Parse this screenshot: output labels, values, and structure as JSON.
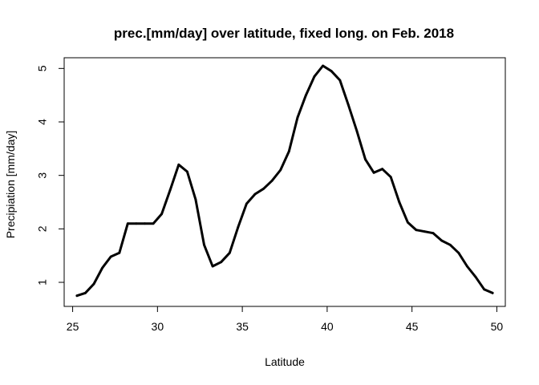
{
  "chart_data": {
    "type": "line",
    "title": "prec.[mm/day] over latitude, fixed long. on Feb. 2018",
    "xlabel": "Latitude",
    "ylabel": "Precipiation [mm/day]",
    "xlim": [
      24.5,
      50.5
    ],
    "ylim": [
      0.55,
      5.2
    ],
    "xticks": [
      25,
      30,
      35,
      40,
      45,
      50
    ],
    "yticks": [
      1,
      2,
      3,
      4,
      5
    ],
    "grid": false,
    "line_color": "#000000",
    "series": [
      {
        "x": [
          25.25,
          25.75,
          26.25,
          26.75,
          27.25,
          27.75,
          28.25,
          28.75,
          29.25,
          29.75,
          30.25,
          30.75,
          31.25,
          31.75,
          32.25,
          32.75,
          33.25,
          33.75,
          34.25,
          34.75,
          35.25,
          35.75,
          36.25,
          36.75,
          37.25,
          37.75,
          38.25,
          38.75,
          39.25,
          39.75,
          40.25,
          40.75,
          41.25,
          41.75,
          42.25,
          42.75,
          43.25,
          43.75,
          44.25,
          44.75,
          45.25,
          45.75,
          46.25,
          46.75,
          47.25,
          47.75,
          48.25,
          48.75,
          49.25,
          49.75
        ],
        "values": [
          0.75,
          0.8,
          0.97,
          1.27,
          1.48,
          1.55,
          2.1,
          2.1,
          2.1,
          2.1,
          2.28,
          2.73,
          3.2,
          3.07,
          2.55,
          1.7,
          1.3,
          1.38,
          1.55,
          2.03,
          2.47,
          2.65,
          2.75,
          2.9,
          3.1,
          3.45,
          4.08,
          4.5,
          4.85,
          5.05,
          4.95,
          4.78,
          4.32,
          3.83,
          3.3,
          3.05,
          3.12,
          2.97,
          2.5,
          2.12,
          1.98,
          1.95,
          1.92,
          1.78,
          1.7,
          1.55,
          1.3,
          1.1,
          0.87,
          0.8
        ]
      }
    ]
  }
}
